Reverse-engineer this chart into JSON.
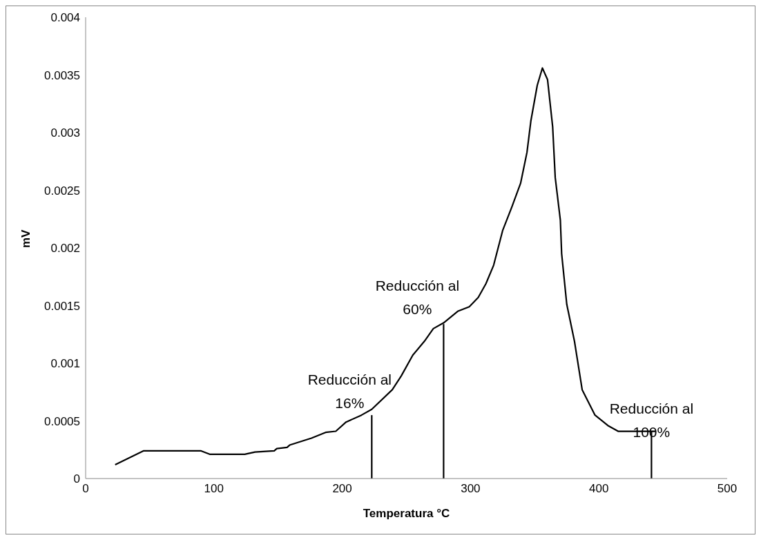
{
  "chart_data": {
    "type": "line",
    "xlabel": "Temperatura °C",
    "ylabel": "mV",
    "xlim": [
      0,
      500
    ],
    "xticks": [
      0,
      100,
      200,
      300,
      400,
      500
    ],
    "ylim": [
      0,
      0.004
    ],
    "yticks": [
      0,
      0.0005,
      0.001,
      0.0015,
      0.002,
      0.0025,
      0.003,
      0.0035,
      0.004
    ],
    "marker": "none",
    "line_style": "solid",
    "series": [
      {
        "color": "#000000",
        "x": [
          23,
          45,
          90,
          97,
          124,
          132,
          147,
          149,
          157,
          159,
          176,
          187,
          195,
          203,
          215,
          223,
          239,
          246,
          255,
          264,
          271,
          279,
          290,
          299,
          306,
          312,
          318,
          325,
          332,
          339,
          344,
          347,
          352,
          356,
          360,
          364,
          366,
          370,
          371,
          375,
          381,
          387,
          397,
          407,
          415,
          444
        ],
        "values": [
          0.00012,
          0.00024,
          0.00024,
          0.00021,
          0.00021,
          0.00023,
          0.00024,
          0.00026,
          0.00027,
          0.00029,
          0.00035,
          0.0004,
          0.00041,
          0.00049,
          0.00055,
          0.0006,
          0.00077,
          0.00089,
          0.00107,
          0.00119,
          0.0013,
          0.00135,
          0.00145,
          0.00149,
          0.00157,
          0.00169,
          0.00185,
          0.00215,
          0.00235,
          0.00256,
          0.00283,
          0.0031,
          0.00341,
          0.00356,
          0.00346,
          0.00305,
          0.00261,
          0.00224,
          0.00195,
          0.00151,
          0.00119,
          0.00077,
          0.00055,
          0.00046,
          0.00041,
          0.00041
        ]
      },
      {
        "color": "#000000",
        "x": [
          223,
          223
        ],
        "values": [
          0,
          0.00055
        ]
      },
      {
        "color": "#000000",
        "x": [
          279,
          279
        ],
        "values": [
          0,
          0.00134
        ]
      },
      {
        "color": "#000000",
        "x": [
          441,
          441
        ],
        "values": [
          0,
          0.00041
        ]
      }
    ],
    "annotations": [
      {
        "text": "Reducción al 16%",
        "x": 223,
        "y": 0.00055
      },
      {
        "text": "Reducción al 60%",
        "x": 279,
        "y": 0.00134
      },
      {
        "text": "Reducción al 100%",
        "x": 441,
        "y": 0.00041
      }
    ]
  }
}
